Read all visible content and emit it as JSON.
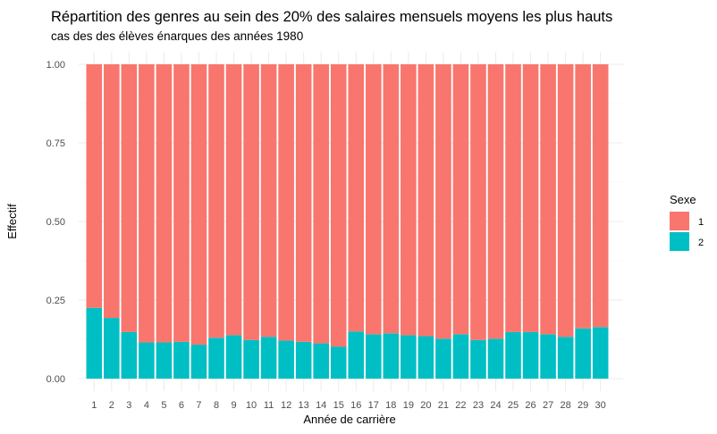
{
  "chart_data": {
    "type": "bar",
    "stacked": true,
    "normalized": true,
    "title": "Répartition des genres au sein des 20% des salaires mensuels moyens les plus hauts",
    "subtitle": "cas des des élèves énarques des années 1980",
    "xlabel": "Année de carrière",
    "ylabel": "Effectif",
    "ylim": [
      0,
      1
    ],
    "yticks": [
      "0.00",
      "0.25",
      "0.50",
      "0.75",
      "1.00"
    ],
    "ytick_values": [
      0,
      0.25,
      0.5,
      0.75,
      1
    ],
    "categories": [
      "1",
      "2",
      "3",
      "4",
      "5",
      "6",
      "7",
      "8",
      "9",
      "10",
      "11",
      "12",
      "13",
      "14",
      "15",
      "16",
      "17",
      "18",
      "19",
      "20",
      "21",
      "22",
      "23",
      "24",
      "25",
      "26",
      "27",
      "28",
      "29",
      "30"
    ],
    "legend": {
      "title": "Sexe",
      "position": "right"
    },
    "grid": true,
    "series": [
      {
        "name": "1",
        "color": "#F8766D",
        "values": [
          0.775,
          0.807,
          0.852,
          0.885,
          0.885,
          0.883,
          0.892,
          0.87,
          0.862,
          0.877,
          0.867,
          0.879,
          0.883,
          0.888,
          0.898,
          0.85,
          0.859,
          0.856,
          0.862,
          0.865,
          0.873,
          0.859,
          0.877,
          0.873,
          0.852,
          0.852,
          0.859,
          0.867,
          0.84,
          0.836
        ]
      },
      {
        "name": "2",
        "color": "#00BFC4",
        "values": [
          0.225,
          0.193,
          0.148,
          0.115,
          0.115,
          0.117,
          0.108,
          0.13,
          0.138,
          0.123,
          0.133,
          0.121,
          0.117,
          0.112,
          0.102,
          0.15,
          0.141,
          0.144,
          0.138,
          0.135,
          0.127,
          0.141,
          0.123,
          0.127,
          0.148,
          0.148,
          0.141,
          0.133,
          0.16,
          0.164
        ]
      }
    ]
  }
}
